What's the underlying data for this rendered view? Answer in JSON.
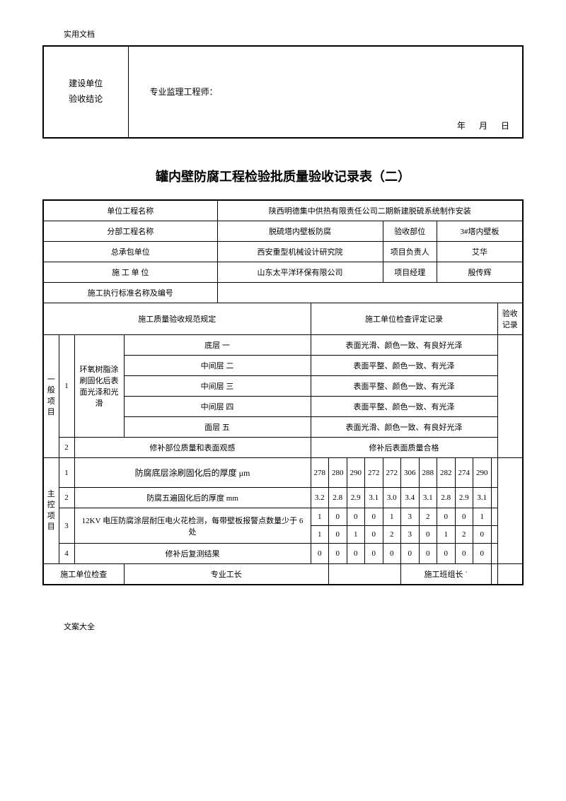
{
  "header_note": "实用文档",
  "footer_note": "文案大全",
  "top_box": {
    "left_line1": "建设单位",
    "left_line2": "验收结论",
    "engineer_label": "专业监理工程师：",
    "date_label": "年    月    日"
  },
  "title": "罐内壁防腐工程检验批质量验收记录表（二）",
  "info": {
    "r1c1": "单位工程名称",
    "r1c2": "陕西明德集中供热有限责任公司二期新建脱硫系统制作安装",
    "r2c1": "分部工程名称",
    "r2c2": "脱硫塔内壁板防腐",
    "r2c3": "验收部位",
    "r2c4": "3#塔内壁板",
    "r3c1": "总承包单位",
    "r3c2": "西安重型机械设计研究院",
    "r3c3": "项目负责人",
    "r3c4": "艾华",
    "r4c1": "施 工  单 位",
    "r4c2": "山东太平洋环保有限公司",
    "r4c3": "项目经理",
    "r4c4": "殷传辉",
    "r5c1": "施工执行标准名称及编号",
    "r6c1": "施工质量验收规范规定",
    "r6c2": "施工单位检查评定记录",
    "r6c3": "验收记录"
  },
  "general": {
    "group_label": "一般项目",
    "item1_desc": "环氧树脂涂刷固化后表面光泽和光滑",
    "layers": [
      {
        "name": "底层  一",
        "result": "表面光滑、颜色一致、有良好光泽"
      },
      {
        "name": "中间层  二",
        "result": "表面平整、颜色一致、有光泽"
      },
      {
        "name": "中间层  三",
        "result": "表面平整、颜色一致、有光泽"
      },
      {
        "name": "中间层  四",
        "result": "表面平整、颜色一致、有光泽"
      },
      {
        "name": "面层  五",
        "result": "表面光滑、颜色一致、有良好光泽"
      }
    ],
    "item2_desc": "修补部位质量和表面观感",
    "item2_result": "修补后表面质量合格"
  },
  "main": {
    "group_label": "主控项目",
    "row1": {
      "desc": "防腐底层涂刷固化后的厚度 μm",
      "data": [
        "278",
        "280",
        "290",
        "272",
        "272",
        "306",
        "288",
        "282",
        "274",
        "290"
      ]
    },
    "row2": {
      "desc": "防腐五遍固化后的厚度    mm",
      "data": [
        "3.2",
        "2.8",
        "2.9",
        "3.1",
        "3.0",
        "3.4",
        "3.1",
        "2.8",
        "2.9",
        "3.1"
      ]
    },
    "row3": {
      "desc": "12KV 电压防腐涂层耐压电火花检测，每带壁板报警点数量少于 6 处",
      "data1": [
        "1",
        "0",
        "0",
        "0",
        "1",
        "3",
        "2",
        "0",
        "0",
        "1"
      ],
      "data2": [
        "1",
        "0",
        "1",
        "0",
        "2",
        "3",
        "0",
        "1",
        "2",
        "0"
      ]
    },
    "row4": {
      "desc": "修补后复测结果",
      "data": [
        "0",
        "0",
        "0",
        "0",
        "0",
        "0",
        "0",
        "0",
        "0",
        "0"
      ]
    }
  },
  "bottom": {
    "c1": "施工单位检查",
    "c2": "专业工长",
    "c3": "施工班组长 `"
  }
}
